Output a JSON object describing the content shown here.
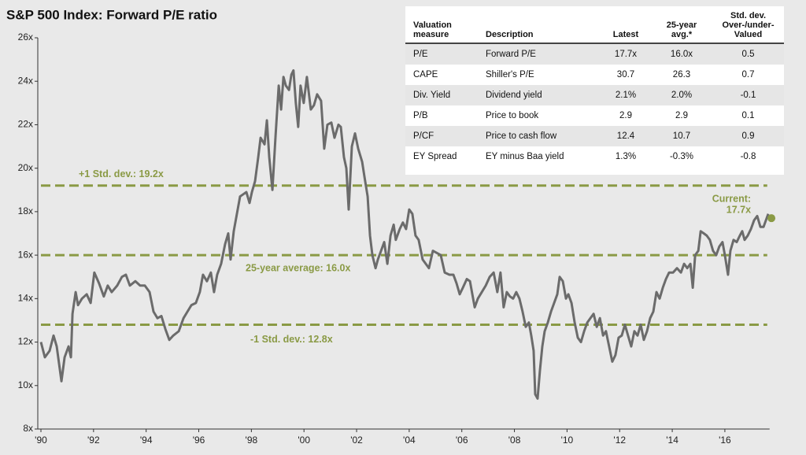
{
  "chart_data": {
    "type": "line",
    "title": "S&P 500 Index: Forward P/E ratio",
    "color": "#6b6b6b",
    "ref_color": "#8a9a45",
    "xlim": [
      1990,
      2018
    ],
    "ylim": [
      8,
      26
    ],
    "xticks": [
      {
        "value": 1990,
        "label": "'90"
      },
      {
        "value": 1992,
        "label": "'92"
      },
      {
        "value": 1994,
        "label": "'94"
      },
      {
        "value": 1996,
        "label": "'96"
      },
      {
        "value": 1998,
        "label": "'98"
      },
      {
        "value": 2000,
        "label": "'00"
      },
      {
        "value": 2002,
        "label": "'02"
      },
      {
        "value": 2004,
        "label": "'04"
      },
      {
        "value": 2006,
        "label": "'06"
      },
      {
        "value": 2008,
        "label": "'08"
      },
      {
        "value": 2010,
        "label": "'10"
      },
      {
        "value": 2012,
        "label": "'12"
      },
      {
        "value": 2014,
        "label": "'14"
      },
      {
        "value": 2016,
        "label": "'16"
      }
    ],
    "yticks": [
      {
        "value": 8,
        "label": "8x"
      },
      {
        "value": 10,
        "label": "10x"
      },
      {
        "value": 12,
        "label": "12x"
      },
      {
        "value": 14,
        "label": "14x"
      },
      {
        "value": 16,
        "label": "16x"
      },
      {
        "value": 18,
        "label": "18x"
      },
      {
        "value": 20,
        "label": "20x"
      },
      {
        "value": 22,
        "label": "22x"
      },
      {
        "value": 24,
        "label": "24x"
      },
      {
        "value": 26,
        "label": "26x"
      }
    ],
    "reference_lines": [
      {
        "value": 19.2,
        "label": "+1 Std. dev.: 19.2x"
      },
      {
        "value": 16.0,
        "label": "25-year average: 16.0x"
      },
      {
        "value": 12.8,
        "label": "-1 Std. dev.: 12.8x"
      }
    ],
    "current": {
      "label": "Current:",
      "x": 2017.77,
      "value": 17.7,
      "value_label": "17.7x"
    },
    "x": [
      1990.0,
      1990.15,
      1990.33,
      1990.48,
      1990.6,
      1990.78,
      1990.9,
      1991.05,
      1991.14,
      1991.2,
      1991.32,
      1991.41,
      1991.56,
      1991.74,
      1991.89,
      1992.03,
      1992.21,
      1992.39,
      1992.54,
      1992.69,
      1992.9,
      1993.08,
      1993.23,
      1993.38,
      1993.59,
      1993.77,
      1993.95,
      1994.13,
      1994.28,
      1994.43,
      1994.58,
      1994.73,
      1994.88,
      1995.03,
      1995.24,
      1995.42,
      1995.57,
      1995.72,
      1995.89,
      1996.04,
      1996.16,
      1996.31,
      1996.46,
      1996.58,
      1996.7,
      1996.85,
      1997.0,
      1997.12,
      1997.21,
      1997.33,
      1997.48,
      1997.57,
      1997.69,
      1997.81,
      1997.93,
      1998.02,
      1998.14,
      1998.26,
      1998.35,
      1998.5,
      1998.59,
      1998.68,
      1998.8,
      1998.92,
      1999.04,
      1999.13,
      1999.22,
      1999.31,
      1999.43,
      1999.52,
      1999.6,
      1999.69,
      1999.78,
      1999.87,
      1999.99,
      2000.11,
      2000.26,
      2000.38,
      2000.5,
      2000.65,
      2000.77,
      2000.89,
      2001.04,
      2001.16,
      2001.31,
      2001.4,
      2001.52,
      2001.61,
      2001.7,
      2001.82,
      2001.94,
      2002.06,
      2002.21,
      2002.3,
      2002.42,
      2002.51,
      2002.6,
      2002.72,
      2002.81,
      2002.93,
      2003.05,
      2003.17,
      2003.29,
      2003.41,
      2003.49,
      2003.64,
      2003.76,
      2003.88,
      2004.0,
      2004.12,
      2004.24,
      2004.36,
      2004.51,
      2004.63,
      2004.75,
      2004.9,
      2005.05,
      2005.2,
      2005.35,
      2005.53,
      2005.68,
      2005.8,
      2005.92,
      2006.04,
      2006.19,
      2006.31,
      2006.49,
      2006.61,
      2006.76,
      2006.91,
      2007.06,
      2007.21,
      2007.35,
      2007.47,
      2007.59,
      2007.71,
      2007.83,
      2007.95,
      2008.07,
      2008.19,
      2008.31,
      2008.43,
      2008.55,
      2008.64,
      2008.73,
      2008.79,
      2008.88,
      2008.97,
      2009.06,
      2009.15,
      2009.27,
      2009.39,
      2009.51,
      2009.63,
      2009.72,
      2009.84,
      2009.96,
      2010.05,
      2010.17,
      2010.29,
      2010.41,
      2010.53,
      2010.65,
      2010.77,
      2010.89,
      2011.01,
      2011.13,
      2011.25,
      2011.37,
      2011.48,
      2011.6,
      2011.72,
      2011.84,
      2011.96,
      2012.08,
      2012.2,
      2012.32,
      2012.44,
      2012.56,
      2012.68,
      2012.8,
      2012.92,
      2013.04,
      2013.16,
      2013.28,
      2013.4,
      2013.52,
      2013.64,
      2013.76,
      2013.88,
      2014.03,
      2014.18,
      2014.33,
      2014.45,
      2014.57,
      2014.69,
      2014.78,
      2014.87,
      2014.99,
      2015.08,
      2015.2,
      2015.31,
      2015.43,
      2015.55,
      2015.67,
      2015.79,
      2015.91,
      2016.0,
      2016.12,
      2016.21,
      2016.33,
      2016.45,
      2016.57,
      2016.66,
      2016.75,
      2016.87,
      2016.99,
      2017.11,
      2017.23,
      2017.35,
      2017.47,
      2017.59,
      2017.65
    ],
    "values": [
      12.0,
      11.3,
      11.6,
      12.3,
      11.8,
      10.2,
      11.3,
      11.8,
      11.3,
      13.3,
      14.3,
      13.7,
      14.0,
      14.2,
      13.8,
      15.2,
      14.7,
      14.1,
      14.6,
      14.3,
      14.6,
      15.0,
      15.1,
      14.6,
      14.8,
      14.6,
      14.6,
      14.3,
      13.4,
      13.1,
      13.2,
      12.6,
      12.1,
      12.3,
      12.5,
      13.1,
      13.4,
      13.7,
      13.8,
      14.3,
      15.1,
      14.8,
      15.2,
      14.3,
      15.1,
      15.6,
      16.5,
      17.0,
      15.8,
      17.1,
      18.1,
      18.7,
      18.8,
      18.9,
      18.4,
      18.9,
      19.4,
      20.5,
      21.4,
      21.1,
      22.2,
      20.5,
      19.0,
      21.5,
      23.8,
      22.7,
      24.2,
      23.8,
      23.6,
      24.3,
      24.5,
      23.0,
      21.9,
      23.8,
      23.0,
      24.2,
      22.7,
      22.9,
      23.4,
      23.1,
      20.9,
      22.0,
      22.1,
      21.4,
      22.0,
      21.9,
      20.5,
      20.0,
      18.1,
      21.0,
      21.6,
      20.9,
      20.3,
      19.6,
      18.7,
      16.9,
      16.0,
      15.4,
      15.8,
      16.2,
      16.6,
      15.6,
      16.9,
      17.4,
      16.7,
      17.2,
      17.5,
      17.2,
      18.1,
      17.9,
      16.9,
      16.7,
      15.8,
      15.6,
      15.4,
      16.2,
      16.1,
      16.0,
      15.2,
      15.1,
      15.1,
      14.7,
      14.2,
      14.5,
      14.9,
      14.8,
      13.6,
      14.0,
      14.3,
      14.6,
      15.0,
      15.2,
      14.3,
      15.2,
      13.6,
      14.3,
      14.1,
      14.0,
      14.3,
      14.0,
      13.4,
      12.7,
      12.9,
      12.3,
      11.6,
      9.6,
      9.4,
      10.7,
      11.8,
      12.5,
      12.9,
      13.4,
      13.8,
      14.2,
      15.0,
      14.8,
      14.0,
      14.2,
      13.8,
      12.9,
      12.2,
      12.0,
      12.5,
      12.9,
      13.1,
      13.3,
      12.7,
      13.1,
      12.3,
      12.5,
      11.8,
      11.1,
      11.4,
      12.2,
      12.3,
      12.8,
      12.3,
      11.8,
      12.5,
      12.3,
      12.8,
      12.1,
      12.5,
      13.1,
      13.4,
      14.3,
      14.0,
      14.5,
      14.9,
      15.2,
      15.2,
      15.4,
      15.2,
      15.6,
      15.4,
      15.6,
      14.5,
      16.0,
      16.2,
      17.1,
      17.0,
      16.9,
      16.7,
      16.2,
      16.0,
      16.4,
      16.6,
      16.0,
      15.1,
      16.2,
      16.7,
      16.6,
      16.9,
      17.1,
      16.7,
      16.9,
      17.2,
      17.6,
      17.8,
      17.3,
      17.3,
      17.7,
      17.9
    ]
  },
  "table": {
    "columns": [
      "Valuation measure",
      "Description",
      "Latest",
      "25-year avg.*",
      "Std. dev. Over-/under-Valued"
    ],
    "rows": [
      [
        "P/E",
        "Forward P/E",
        "17.7x",
        "16.0x",
        "0.5"
      ],
      [
        "CAPE",
        "Shiller's P/E",
        "30.7",
        "26.3",
        "0.7"
      ],
      [
        "Div. Yield",
        "Dividend yield",
        "2.1%",
        "2.0%",
        "-0.1"
      ],
      [
        "P/B",
        "Price to book",
        "2.9",
        "2.9",
        "0.1"
      ],
      [
        "P/CF",
        "Price to cash flow",
        "12.4",
        "10.7",
        "0.9"
      ],
      [
        "EY Spread",
        "EY minus Baa yield",
        "1.3%",
        "-0.3%",
        "-0.8"
      ]
    ]
  }
}
